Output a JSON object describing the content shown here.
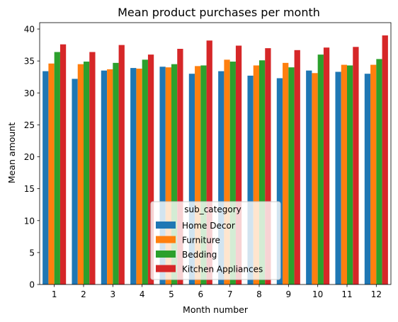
{
  "chart_data": {
    "type": "bar",
    "title": "Mean product purchases per month",
    "xlabel": "Month number",
    "ylabel": "Mean amount",
    "ylim": [
      0,
      41
    ],
    "yticks": [
      0,
      5,
      10,
      15,
      20,
      25,
      30,
      35,
      40
    ],
    "categories": [
      "1",
      "2",
      "3",
      "4",
      "5",
      "6",
      "7",
      "8",
      "9",
      "10",
      "11",
      "12"
    ],
    "grid": false,
    "legend": {
      "title": "sub_category",
      "placement": "lower-center"
    },
    "series": [
      {
        "name": "Home Decor",
        "color": "#1f77b4",
        "values": [
          33.4,
          32.2,
          33.5,
          33.9,
          34.1,
          33.0,
          33.4,
          32.7,
          32.3,
          33.5,
          33.3,
          33.0
        ]
      },
      {
        "name": "Furniture",
        "color": "#ff7f0e",
        "values": [
          34.6,
          34.5,
          33.7,
          33.8,
          34.0,
          34.2,
          35.2,
          34.3,
          34.7,
          33.1,
          34.4,
          34.4
        ]
      },
      {
        "name": "Bedding",
        "color": "#2ca02c",
        "values": [
          36.4,
          34.9,
          34.7,
          35.2,
          34.5,
          34.3,
          34.9,
          35.1,
          34.0,
          36.0,
          34.3,
          35.3
        ]
      },
      {
        "name": "Kitchen Appliances",
        "color": "#d62728",
        "values": [
          37.6,
          36.4,
          37.5,
          36.0,
          36.9,
          38.2,
          37.4,
          37.0,
          36.7,
          37.1,
          37.2,
          39.0
        ]
      }
    ]
  }
}
